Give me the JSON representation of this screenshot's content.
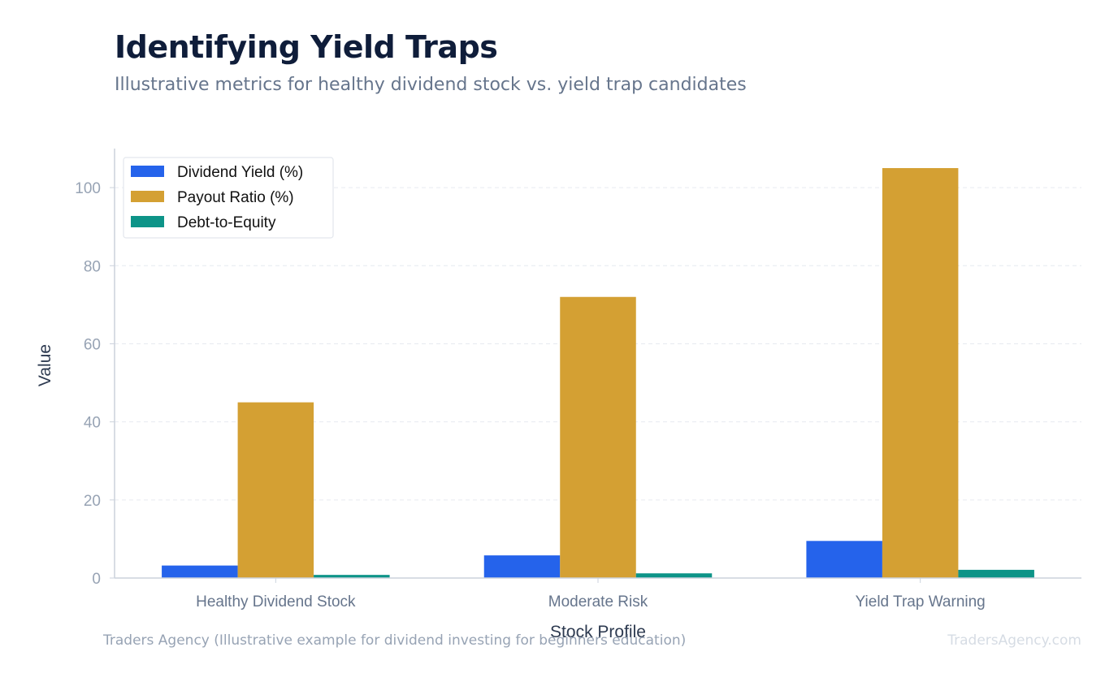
{
  "header": {
    "title": "Identifying Yield Traps",
    "subtitle": "Illustrative metrics for healthy dividend stock vs. yield trap candidates"
  },
  "footer": {
    "source": "Traders Agency (Illustrative example for dividend investing for beginners education)",
    "watermark": "TradersAgency.com"
  },
  "chart_data": {
    "type": "bar",
    "categories": [
      "Healthy Dividend Stock",
      "Moderate Risk",
      "Yield Trap Warning"
    ],
    "series": [
      {
        "name": "Dividend Yield (%)",
        "values": [
          3.2,
          5.8,
          9.5
        ],
        "color": "#2563eb"
      },
      {
        "name": "Payout Ratio (%)",
        "values": [
          45,
          72,
          105
        ],
        "color": "#d4a033"
      },
      {
        "name": "Debt-to-Equity",
        "values": [
          0.8,
          1.2,
          2.1
        ],
        "color": "#0d9488"
      }
    ],
    "xlabel": "Stock Profile",
    "ylabel": "Value",
    "ylim": [
      0,
      110
    ],
    "yticks": [
      0,
      20,
      40,
      60,
      80,
      100
    ],
    "grid": true,
    "legend": "top-left"
  }
}
